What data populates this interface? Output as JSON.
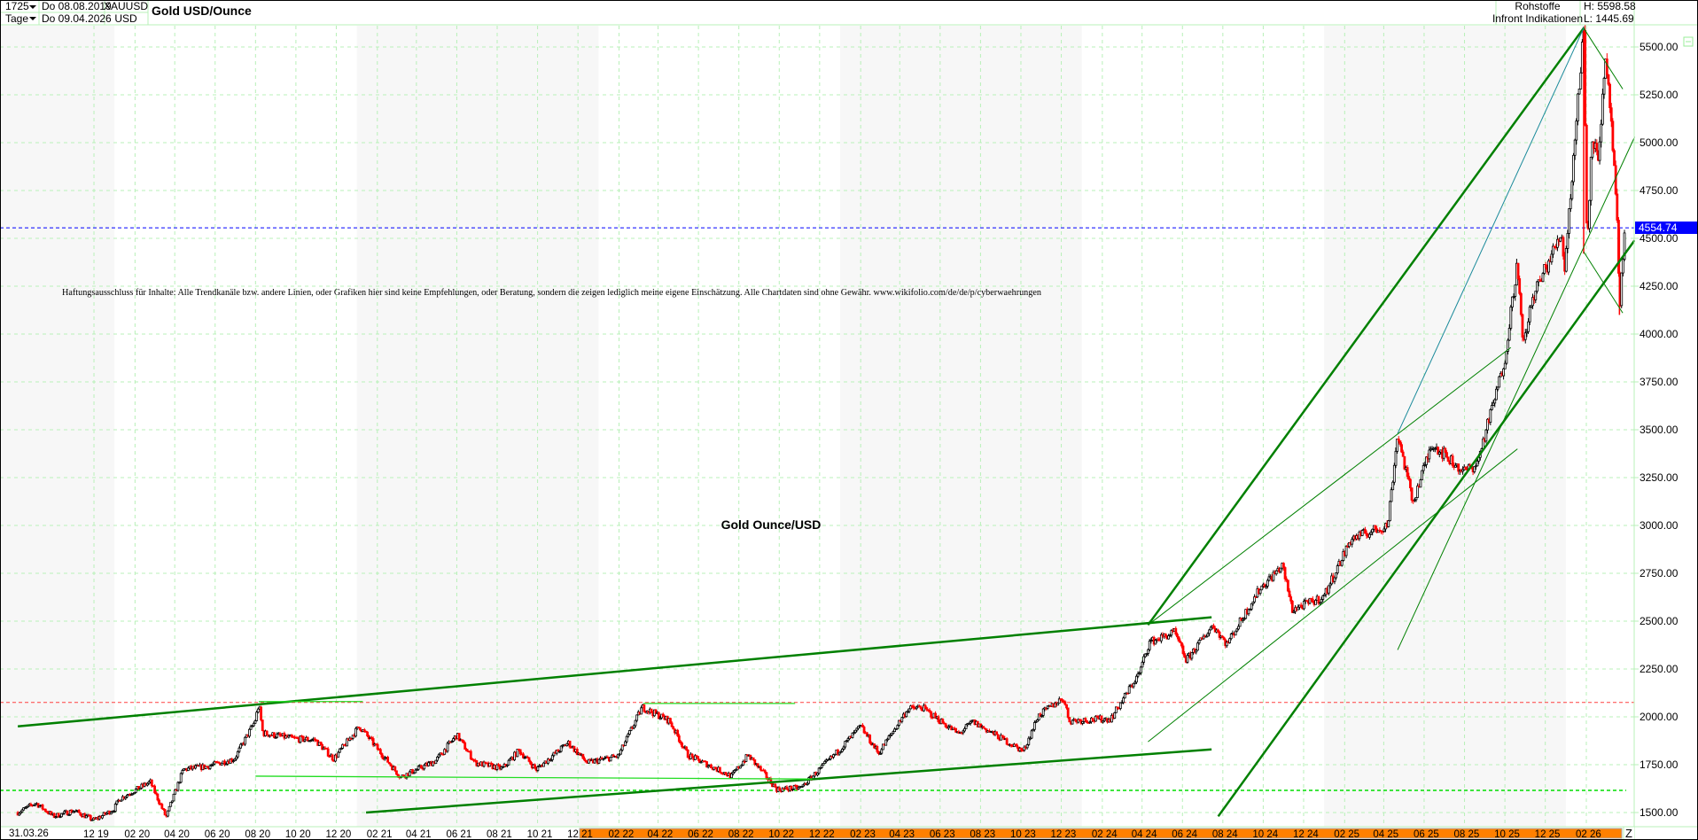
{
  "header": {
    "bars_count": "1725",
    "period": "Tage",
    "start_date": "Do 08.08.2019",
    "end_date": "Do 09.04.2026",
    "symbol": "XAUUSD",
    "currency": "USD",
    "title": "Gold USD/Ounce",
    "category": "Rohstoffe",
    "source": "Infront Indikationen",
    "high": "H: 5598.58",
    "low": "L: 1445.69"
  },
  "disclaimer": "Haftungsausschluss für Inhalte: Alle Trendkanäle bzw. andere Linien, oder Grafiken hier sind keine Empfehlungen, oder Beratung, sondern die zeigen lediglich meine eigene Einschätzung. Alle Chartdaten sind ohne Gewähr.  www.wikifolio.com/de/de/p/cyberwaehrungen",
  "watermark": "Gold Ounce/USD",
  "bottom_left_label": "31.03.26",
  "z_button": "Z",
  "colors": {
    "up_candle": "#000000",
    "down_candle": "#ff0000",
    "trendline": "#008000",
    "trendline_teal": "#1a8a9a",
    "grid": "#b8f0b8",
    "last_price_bg": "#0000ff",
    "axis_band": "#ff8000"
  },
  "chart_data": {
    "type": "candlestick",
    "title": "Gold USD/Ounce",
    "ylim": [
      1445.69,
      5598.58
    ],
    "y_ticks": [
      "1500.00",
      "1750.00",
      "2000.00",
      "2250.00",
      "2500.00",
      "2750.00",
      "3000.00",
      "3250.00",
      "3500.00",
      "3750.00",
      "4000.00",
      "4250.00",
      "4500.00",
      "4750.00",
      "5000.00",
      "5250.00",
      "5500.00"
    ],
    "x_ticks": [
      "12 19",
      "02 20",
      "04 20",
      "06 20",
      "08 20",
      "10 20",
      "12 20",
      "02 21",
      "04 21",
      "06 21",
      "08 21",
      "10 21",
      "12 21",
      "02 22",
      "04 22",
      "06 22",
      "08 22",
      "10 22",
      "12 22",
      "02 23",
      "04 23",
      "06 23",
      "08 23",
      "10 23",
      "12 23",
      "02 24",
      "04 24",
      "06 24",
      "08 24",
      "10 24",
      "12 24",
      "02 25",
      "04 25",
      "06 25",
      "08 25",
      "10 25",
      "12 25",
      "02 26"
    ],
    "last_price": "4554.74",
    "grid": true,
    "price_path": [
      [
        "2019-08-08",
        1500
      ],
      [
        "2019-09-04",
        1550
      ],
      [
        "2019-10-01",
        1480
      ],
      [
        "2019-11-01",
        1510
      ],
      [
        "2019-12-01",
        1460
      ],
      [
        "2019-12-31",
        1517
      ],
      [
        "2020-01-08",
        1570
      ],
      [
        "2020-02-24",
        1660
      ],
      [
        "2020-03-19",
        1475
      ],
      [
        "2020-04-14",
        1725
      ],
      [
        "2020-05-18",
        1740
      ],
      [
        "2020-06-30",
        1780
      ],
      [
        "2020-07-31",
        1975
      ],
      [
        "2020-08-06",
        2065
      ],
      [
        "2020-08-12",
        1915
      ],
      [
        "2020-09-30",
        1885
      ],
      [
        "2020-10-30",
        1880
      ],
      [
        "2020-11-27",
        1780
      ],
      [
        "2021-01-05",
        1950
      ],
      [
        "2021-03-08",
        1685
      ],
      [
        "2021-04-30",
        1770
      ],
      [
        "2021-06-01",
        1905
      ],
      [
        "2021-06-29",
        1760
      ],
      [
        "2021-08-09",
        1730
      ],
      [
        "2021-09-03",
        1825
      ],
      [
        "2021-09-29",
        1725
      ],
      [
        "2021-11-16",
        1865
      ],
      [
        "2021-12-15",
        1760
      ],
      [
        "2022-01-31",
        1795
      ],
      [
        "2022-03-08",
        2050
      ],
      [
        "2022-04-18",
        1980
      ],
      [
        "2022-05-16",
        1800
      ],
      [
        "2022-07-21",
        1690
      ],
      [
        "2022-08-15",
        1800
      ],
      [
        "2022-09-28",
        1620
      ],
      [
        "2022-11-03",
        1630
      ],
      [
        "2022-12-30",
        1824
      ],
      [
        "2023-02-01",
        1950
      ],
      [
        "2023-02-28",
        1810
      ],
      [
        "2023-04-13",
        2040
      ],
      [
        "2023-05-04",
        2050
      ],
      [
        "2023-06-29",
        1910
      ],
      [
        "2023-07-20",
        1975
      ],
      [
        "2023-10-05",
        1820
      ],
      [
        "2023-10-27",
        2005
      ],
      [
        "2023-12-04",
        2100
      ],
      [
        "2023-12-13",
        1980
      ],
      [
        "2024-02-14",
        1990
      ],
      [
        "2024-03-28",
        2230
      ],
      [
        "2024-04-12",
        2390
      ],
      [
        "2024-05-20",
        2440
      ],
      [
        "2024-06-07",
        2295
      ],
      [
        "2024-07-17",
        2480
      ],
      [
        "2024-08-07",
        2380
      ],
      [
        "2024-09-26",
        2670
      ],
      [
        "2024-10-30",
        2790
      ],
      [
        "2024-11-14",
        2560
      ],
      [
        "2024-12-31",
        2625
      ],
      [
        "2025-02-11",
        2930
      ],
      [
        "2025-04-07",
        3000
      ],
      [
        "2025-04-22",
        3480
      ],
      [
        "2025-05-15",
        3120
      ],
      [
        "2025-06-13",
        3430
      ],
      [
        "2025-07-30",
        3280
      ],
      [
        "2025-08-20",
        3320
      ],
      [
        "2025-09-30",
        3850
      ],
      [
        "2025-10-20",
        4380
      ],
      [
        "2025-10-28",
        3930
      ],
      [
        "2025-11-13",
        4200
      ],
      [
        "2025-12-26",
        4530
      ],
      [
        "2025-12-30",
        4330
      ],
      [
        "2026-01-28",
        5598.58
      ],
      [
        "2026-02-02",
        4450
      ],
      [
        "2026-02-10",
        5050
      ],
      [
        "2026-02-18",
        4900
      ],
      [
        "2026-03-02",
        5400
      ],
      [
        "2026-03-10",
        5150
      ],
      [
        "2026-03-20",
        4550
      ],
      [
        "2026-03-23",
        4100
      ],
      [
        "2026-03-31",
        4554.74
      ]
    ],
    "horizontal_lines": [
      {
        "value": 4554.74,
        "style": "dashed",
        "color": "#0000ff"
      },
      {
        "value": 2075,
        "style": "dashed",
        "color": "#ff4040"
      },
      {
        "value": 1616,
        "style": "dashed",
        "color": "#00dd00"
      }
    ],
    "trendlines": [
      {
        "from": [
          "2019-08-08",
          1950
        ],
        "to": [
          "2024-07-15",
          2520
        ],
        "width": "thick"
      },
      {
        "from": [
          "2021-01-15",
          1500
        ],
        "to": [
          "2024-07-15",
          1830
        ],
        "width": "thick"
      },
      {
        "from": [
          "2024-04-10",
          2480
        ],
        "to": [
          "2026-01-28",
          5598.58
        ],
        "width": "thick"
      },
      {
        "from": [
          "2024-07-25",
          1480
        ],
        "to": [
          "2026-04-15",
          4490
        ],
        "width": "thick"
      },
      {
        "from": [
          "2025-04-22",
          3480
        ],
        "to": [
          "2026-01-28",
          5598.58
        ],
        "width": "thin",
        "color": "teal"
      },
      {
        "from": [
          "2024-04-10",
          1870
        ],
        "to": [
          "2025-10-20",
          3400
        ],
        "width": "thin"
      },
      {
        "from": [
          "2024-04-10",
          2480
        ],
        "to": [
          "2025-10-10",
          3930
        ],
        "width": "thin"
      },
      {
        "from": [
          "2025-04-22",
          2350
        ],
        "to": [
          "2026-04-15",
          5030
        ],
        "width": "thin"
      },
      {
        "from": [
          "2026-01-28",
          5598.58
        ],
        "to": [
          "2026-03-28",
          5280
        ],
        "width": "thin"
      },
      {
        "from": [
          "2026-01-28",
          4430
        ],
        "to": [
          "2026-03-28",
          4110
        ],
        "width": "thin"
      },
      {
        "from": [
          "2020-08-06",
          2080
        ],
        "to": [
          "2021-01-10",
          2080
        ],
        "width": "thin",
        "color": "bright"
      },
      {
        "from": [
          "2022-03-10",
          2070
        ],
        "to": [
          "2022-10-25",
          2070
        ],
        "width": "thin",
        "color": "bright"
      },
      {
        "from": [
          "2020-08-01",
          1690
        ],
        "to": [
          "2022-11-20",
          1675
        ],
        "width": "thin",
        "color": "bright"
      }
    ]
  }
}
